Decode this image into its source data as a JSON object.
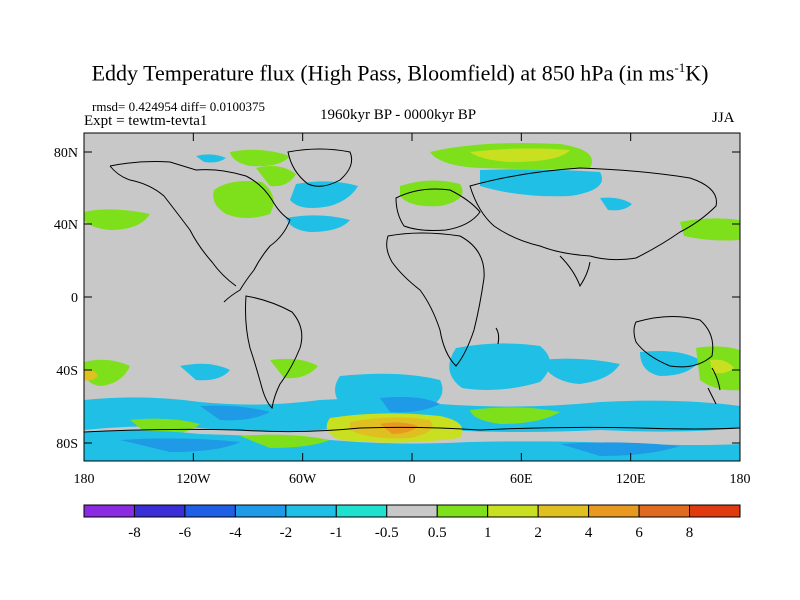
{
  "title": {
    "prefix": "Eddy Temperature flux (High Pass, Bloomfield) at 850 hPa (in ms",
    "sup": "-1",
    "suffix": "K)"
  },
  "stats": "rmsd= 0.424954 diff= 0.0100375",
  "expt": "Expt = tewtm-tevta1",
  "period": "1960kyr BP - 0000kyr BP",
  "season": "JJA",
  "axes": {
    "y_ticks": [
      "80N",
      "40N",
      "0",
      "40S",
      "80S"
    ],
    "x_ticks": [
      "180",
      "120W",
      "60W",
      "0",
      "60E",
      "120E",
      "180"
    ]
  },
  "colorbar": {
    "labels": [
      "-8",
      "-6",
      "-4",
      "-2",
      "-1",
      "-0.5",
      "0.5",
      "1",
      "2",
      "4",
      "6",
      "8"
    ],
    "colors": [
      "#8a2be2",
      "#3a2fd6",
      "#1e5fe6",
      "#1e9ae6",
      "#20c0e6",
      "#20e0d0",
      "#c8c8c8",
      "#7ee01a",
      "#c8e020",
      "#e0c020",
      "#e89a20",
      "#e06a20",
      "#e03a10"
    ]
  },
  "map_background": "#c8c8c8"
}
